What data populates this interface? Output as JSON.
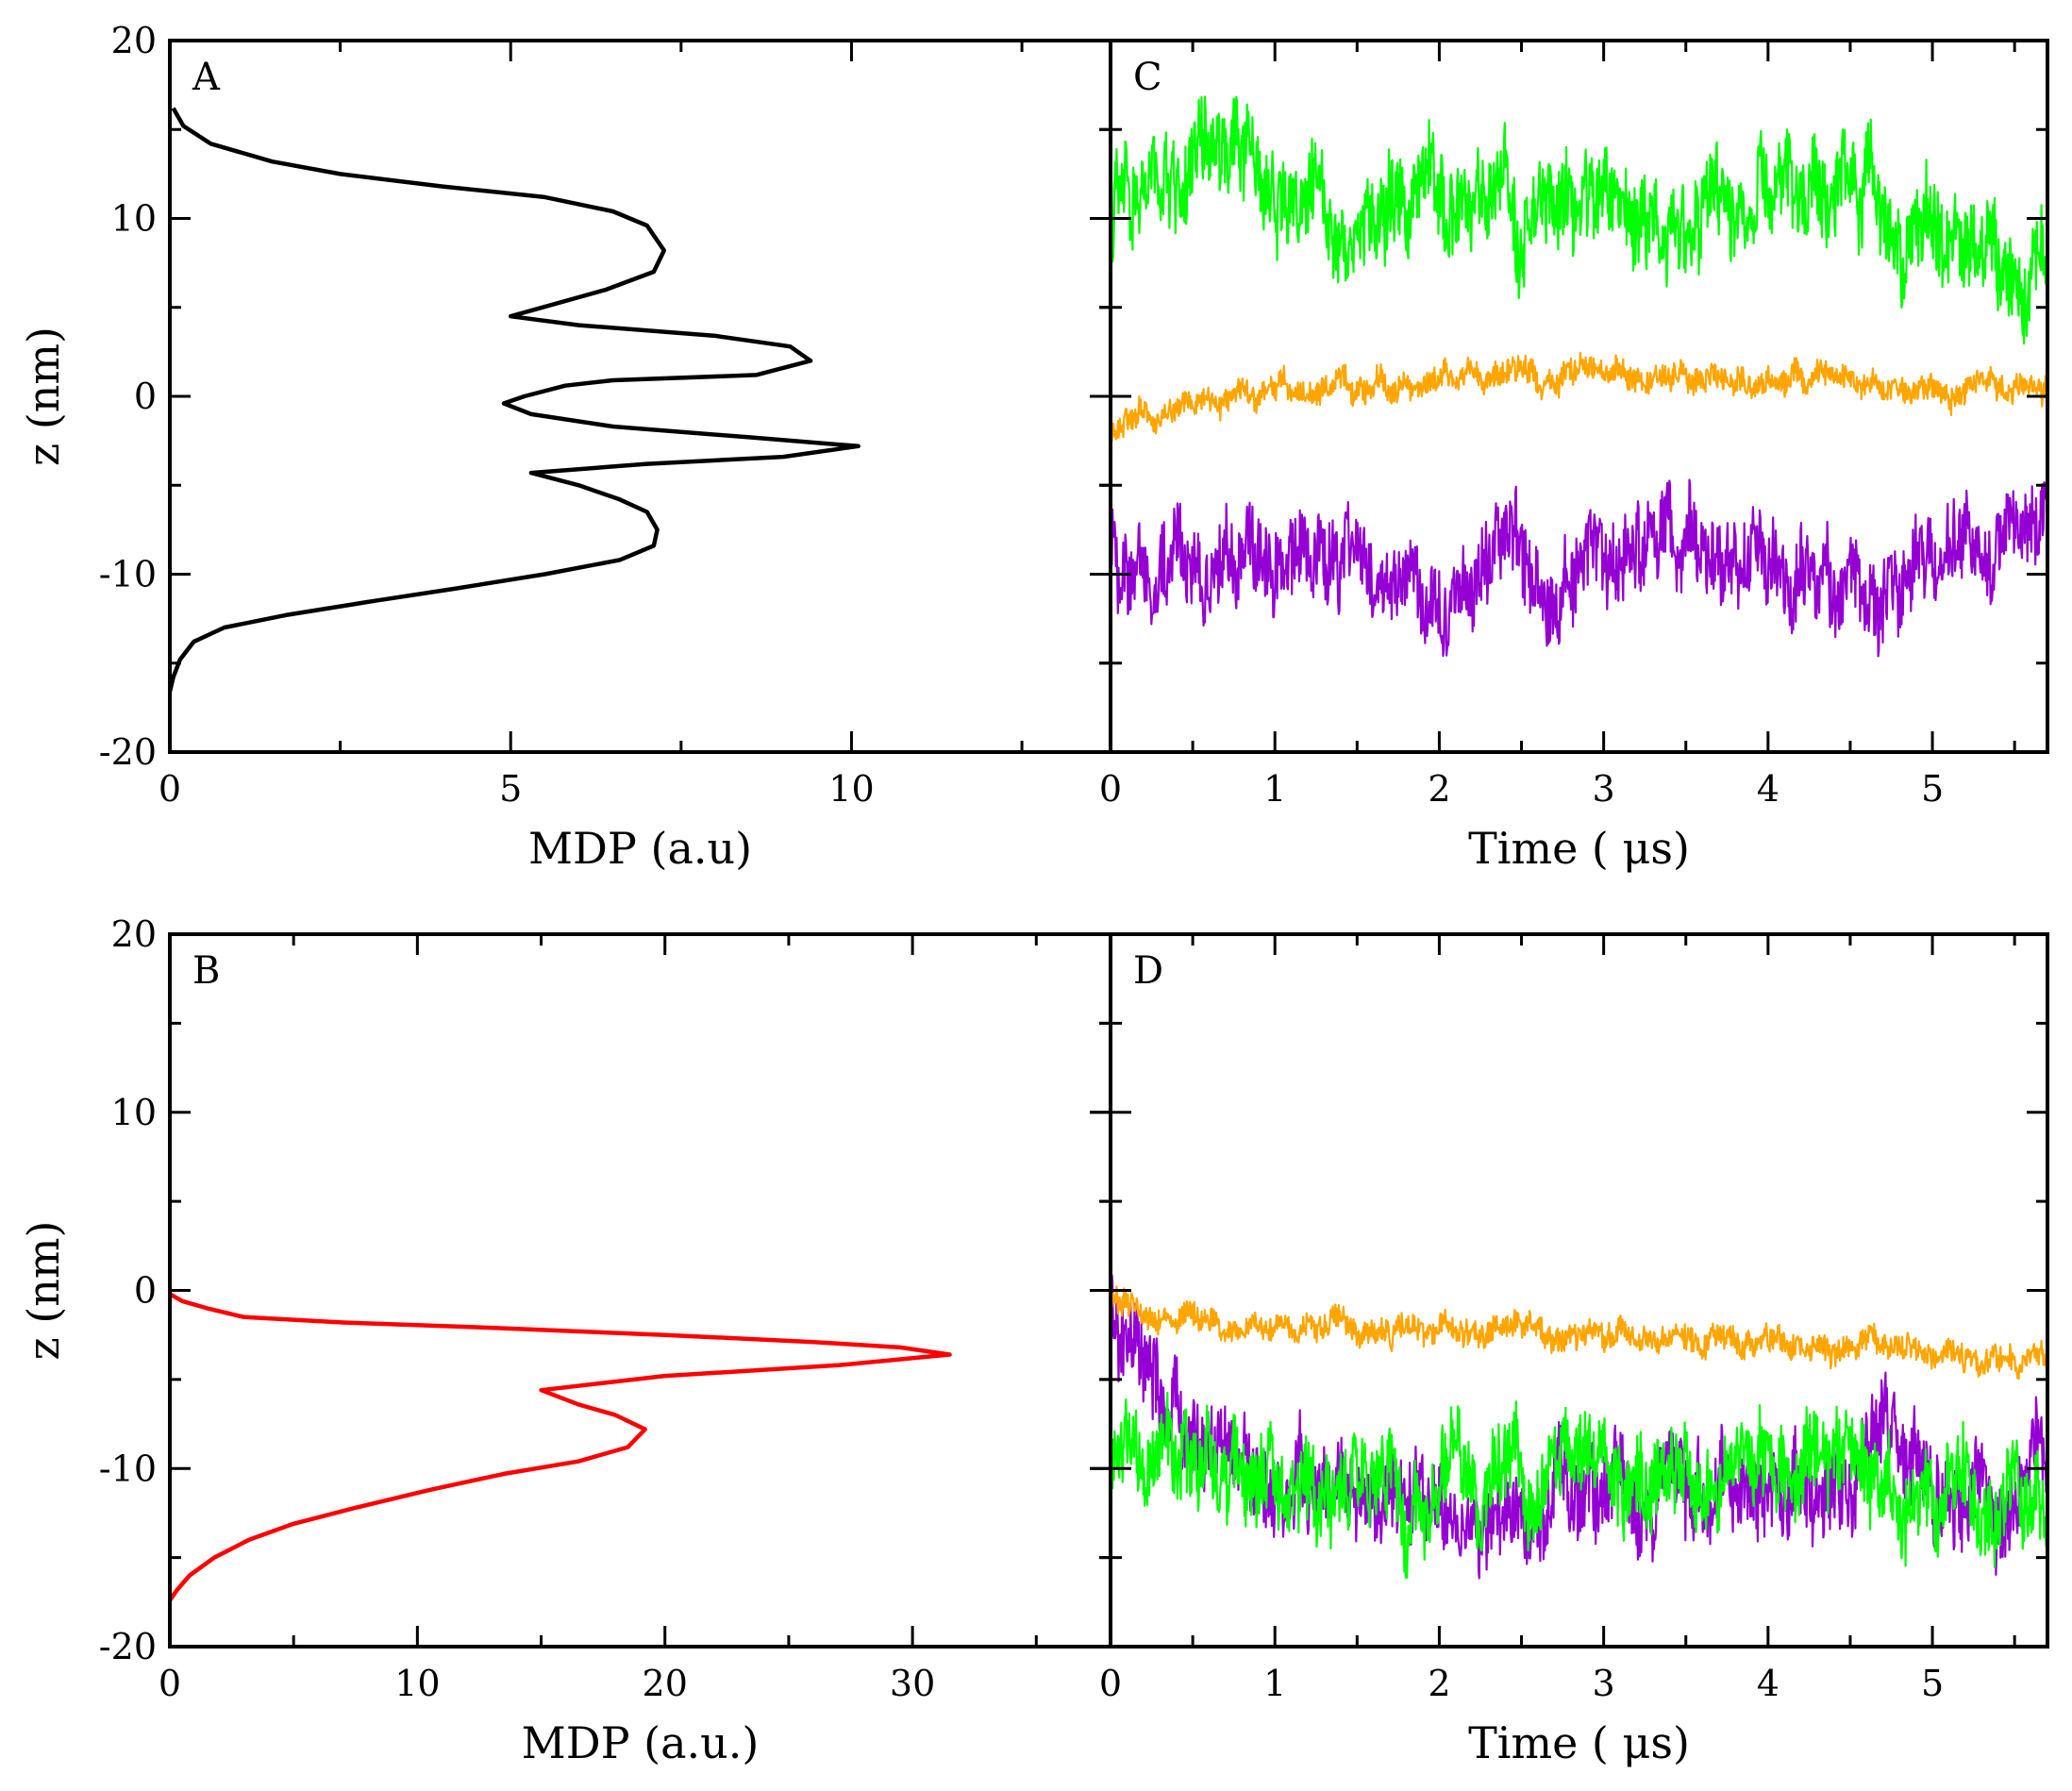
{
  "chart_data": [
    {
      "panel": "A",
      "type": "line",
      "xlabel": "MDP (a.u)",
      "ylabel": "z (nm)",
      "xlim": [
        0,
        13.8
      ],
      "ylim": [
        -20,
        20
      ],
      "xticks": [
        0,
        5,
        10
      ],
      "xtick_labels": [
        "0",
        "5",
        "10"
      ],
      "yticks": [
        -20,
        -10,
        0,
        10,
        20
      ],
      "ytick_labels": [
        "-20",
        "-10",
        "0",
        "10",
        "20"
      ],
      "series": [
        {
          "name": "MDP profile",
          "color": "#000000",
          "points": [
            [
              0.05,
              16.2
            ],
            [
              0.2,
              15.2
            ],
            [
              0.6,
              14.2
            ],
            [
              1.5,
              13.2
            ],
            [
              2.5,
              12.5
            ],
            [
              4.0,
              11.8
            ],
            [
              5.5,
              11.2
            ],
            [
              6.5,
              10.4
            ],
            [
              7.0,
              9.6
            ],
            [
              7.25,
              8.2
            ],
            [
              7.1,
              7.0
            ],
            [
              6.4,
              6.0
            ],
            [
              5.0,
              4.5
            ],
            [
              6.0,
              4.0
            ],
            [
              8.0,
              3.4
            ],
            [
              9.1,
              2.8
            ],
            [
              9.4,
              2.0
            ],
            [
              8.6,
              1.2
            ],
            [
              6.5,
              0.9
            ],
            [
              5.8,
              0.6
            ],
            [
              5.2,
              0.0
            ],
            [
              4.9,
              -0.4
            ],
            [
              5.3,
              -1.0
            ],
            [
              6.5,
              -1.7
            ],
            [
              8.5,
              -2.3
            ],
            [
              10.1,
              -2.8
            ],
            [
              9.0,
              -3.4
            ],
            [
              7.0,
              -3.8
            ],
            [
              5.3,
              -4.3
            ],
            [
              6.0,
              -5.0
            ],
            [
              6.6,
              -5.8
            ],
            [
              7.0,
              -6.5
            ],
            [
              7.15,
              -7.5
            ],
            [
              7.1,
              -8.4
            ],
            [
              6.6,
              -9.2
            ],
            [
              5.5,
              -10.0
            ],
            [
              4.2,
              -10.8
            ],
            [
              3.0,
              -11.5
            ],
            [
              1.7,
              -12.3
            ],
            [
              0.8,
              -13.0
            ],
            [
              0.35,
              -13.8
            ],
            [
              0.15,
              -14.8
            ],
            [
              0.05,
              -15.8
            ],
            [
              0.0,
              -16.6
            ]
          ]
        }
      ]
    },
    {
      "panel": "C",
      "type": "line",
      "xlabel": "Time ( μs)",
      "ylabel": "",
      "xlim": [
        0,
        5.7
      ],
      "ylim": [
        -20,
        20
      ],
      "xticks": [
        0,
        1,
        2,
        3,
        4,
        5
      ],
      "xtick_labels": [
        "0",
        "1",
        "2",
        "3",
        "4",
        "5"
      ],
      "yticks": [
        -20,
        -10,
        0,
        10,
        20
      ],
      "series": [
        {
          "name": "green",
          "color": "#00ff00",
          "noise": 2.8,
          "trend": [
            [
              0,
              10.5
            ],
            [
              0.7,
              13
            ],
            [
              1.0,
              12
            ],
            [
              1.5,
              10
            ],
            [
              2.0,
              11
            ],
            [
              2.5,
              9.5
            ],
            [
              3.0,
              11
            ],
            [
              3.5,
              10
            ],
            [
              4.0,
              10.5
            ],
            [
              4.5,
              12
            ],
            [
              5.0,
              9
            ],
            [
              5.7,
              7.5
            ]
          ]
        },
        {
          "name": "orange",
          "color": "#ffa500",
          "noise": 0.8,
          "trend": [
            [
              0,
              -1.8
            ],
            [
              0.5,
              -0.5
            ],
            [
              1.0,
              0.5
            ],
            [
              1.5,
              0.3
            ],
            [
              2.0,
              1.0
            ],
            [
              2.5,
              1.2
            ],
            [
              3.0,
              1.3
            ],
            [
              3.5,
              0.7
            ],
            [
              4.0,
              1.0
            ],
            [
              4.5,
              0.5
            ],
            [
              5.0,
              0.3
            ],
            [
              5.7,
              0.7
            ]
          ]
        },
        {
          "name": "purple",
          "color": "#9400d3",
          "noise": 2.6,
          "trend": [
            [
              0,
              -9
            ],
            [
              0.5,
              -9
            ],
            [
              1.0,
              -9.5
            ],
            [
              1.5,
              -10
            ],
            [
              2.0,
              -11
            ],
            [
              2.5,
              -9
            ],
            [
              3.0,
              -10
            ],
            [
              3.3,
              -7
            ],
            [
              3.5,
              -9
            ],
            [
              4.0,
              -10
            ],
            [
              4.5,
              -11
            ],
            [
              5.0,
              -9
            ],
            [
              5.7,
              -7
            ]
          ]
        }
      ]
    },
    {
      "panel": "B",
      "type": "line",
      "xlabel": "MDP (a.u.)",
      "ylabel": "z (nm)",
      "xlim": [
        0,
        38
      ],
      "ylim": [
        -20,
        20
      ],
      "xticks": [
        0,
        10,
        20,
        30
      ],
      "xtick_labels": [
        "0",
        "10",
        "20",
        "30"
      ],
      "yticks": [
        -20,
        -10,
        0,
        10,
        20
      ],
      "ytick_labels": [
        "-20",
        "-10",
        "0",
        "10",
        "20"
      ],
      "series": [
        {
          "name": "MDP profile",
          "color": "#ff0000",
          "points": [
            [
              0.0,
              -0.2
            ],
            [
              0.5,
              -0.6
            ],
            [
              1.5,
              -1.0
            ],
            [
              3.0,
              -1.5
            ],
            [
              7.0,
              -1.8
            ],
            [
              13.0,
              -2.1
            ],
            [
              20.0,
              -2.5
            ],
            [
              26.0,
              -2.9
            ],
            [
              29.5,
              -3.2
            ],
            [
              31.5,
              -3.6
            ],
            [
              27.0,
              -4.2
            ],
            [
              20.0,
              -4.8
            ],
            [
              15.0,
              -5.6
            ],
            [
              16.5,
              -6.4
            ],
            [
              18.0,
              -7.0
            ],
            [
              19.2,
              -7.8
            ],
            [
              18.5,
              -8.8
            ],
            [
              16.5,
              -9.6
            ],
            [
              13.5,
              -10.3
            ],
            [
              10.5,
              -11.2
            ],
            [
              7.5,
              -12.2
            ],
            [
              5.0,
              -13.1
            ],
            [
              3.2,
              -14.0
            ],
            [
              1.8,
              -15.0
            ],
            [
              0.8,
              -16.0
            ],
            [
              0.3,
              -16.8
            ],
            [
              0.0,
              -17.4
            ]
          ]
        }
      ]
    },
    {
      "panel": "D",
      "type": "line",
      "xlabel": "Time ( μs)",
      "ylabel": "",
      "xlim": [
        0,
        5.7
      ],
      "ylim": [
        -20,
        20
      ],
      "xticks": [
        0,
        1,
        2,
        3,
        4,
        5
      ],
      "xtick_labels": [
        "0",
        "1",
        "2",
        "3",
        "4",
        "5"
      ],
      "yticks": [
        -20,
        -10,
        0,
        10,
        20
      ],
      "series": [
        {
          "name": "purple",
          "color": "#9400d3",
          "noise": 2.6,
          "trend": [
            [
              0,
              -2
            ],
            [
              0.3,
              -7
            ],
            [
              0.7,
              -10
            ],
            [
              1.0,
              -11
            ],
            [
              1.5,
              -12
            ],
            [
              2.0,
              -12.5
            ],
            [
              2.3,
              -14
            ],
            [
              2.7,
              -12
            ],
            [
              3.0,
              -11
            ],
            [
              3.5,
              -12
            ],
            [
              4.0,
              -11
            ],
            [
              4.5,
              -11
            ],
            [
              4.7,
              -6
            ],
            [
              5.0,
              -12
            ],
            [
              5.4,
              -13
            ],
            [
              5.7,
              -10
            ]
          ]
        },
        {
          "name": "green",
          "color": "#00ff00",
          "noise": 2.6,
          "trend": [
            [
              0,
              -9
            ],
            [
              0.5,
              -10
            ],
            [
              1.0,
              -11
            ],
            [
              1.5,
              -10.5
            ],
            [
              2.0,
              -11
            ],
            [
              2.5,
              -10
            ],
            [
              3.0,
              -9.5
            ],
            [
              3.5,
              -10
            ],
            [
              4.0,
              -9.5
            ],
            [
              4.5,
              -10
            ],
            [
              5.0,
              -11
            ],
            [
              5.7,
              -11.5
            ]
          ]
        },
        {
          "name": "orange",
          "color": "#ffa500",
          "noise": 0.8,
          "trend": [
            [
              0,
              -0.5
            ],
            [
              0.5,
              -2
            ],
            [
              1.0,
              -1.8
            ],
            [
              1.5,
              -2
            ],
            [
              2.0,
              -2.2
            ],
            [
              2.5,
              -2.4
            ],
            [
              3.0,
              -2.6
            ],
            [
              3.5,
              -2.4
            ],
            [
              4.0,
              -2.8
            ],
            [
              4.5,
              -3
            ],
            [
              5.0,
              -3.6
            ],
            [
              5.7,
              -3.5
            ]
          ]
        }
      ]
    }
  ]
}
